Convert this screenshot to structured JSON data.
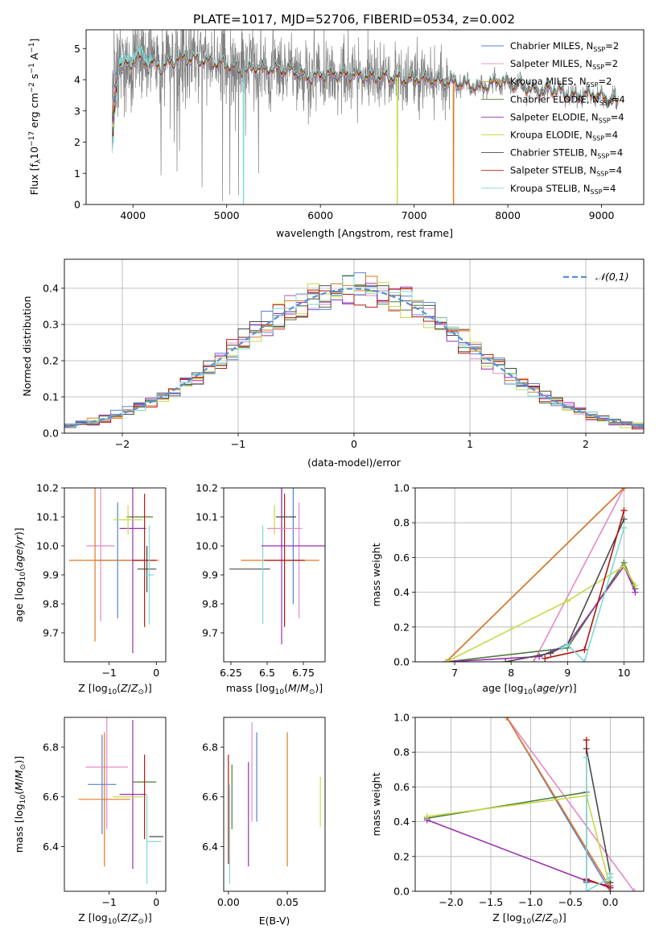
{
  "figure": {
    "title": "PLATE=1017, MJD=52706, FIBERID=0534, z=0.002"
  },
  "models": [
    {
      "name": "Chabrier MILES",
      "nssp": "2",
      "color": "#5a7fd6"
    },
    {
      "name": "Salpeter MILES",
      "nssp": "2",
      "color": "#e58ac6"
    },
    {
      "name": "Kroupa MILES",
      "nssp": "2",
      "color": "#e07a1f"
    },
    {
      "name": "Chabrier ELODIE",
      "nssp": "4",
      "color": "#4e7d3a"
    },
    {
      "name": "Salpeter ELODIE",
      "nssp": "4",
      "color": "#9b2fb0"
    },
    {
      "name": "Kroupa ELODIE",
      "nssp": "4",
      "color": "#c8d94a"
    },
    {
      "name": "Chabrier STELIB",
      "nssp": "4",
      "color": "#4a4a4a"
    },
    {
      "name": "Salpeter STELIB",
      "nssp": "4",
      "color": "#b01a12"
    },
    {
      "name": "Kroupa STELIB",
      "nssp": "4",
      "color": "#7fd8d8"
    }
  ],
  "chart_data": [
    {
      "id": "spectrum",
      "type": "line",
      "xlabel": "wavelength [Angstrom, rest frame]",
      "ylabel": "Flux [f_λ 10^-17 erg cm^-2 s^-1 A^-1]",
      "xlim": [
        3500,
        9450
      ],
      "ylim": [
        0,
        5.6
      ],
      "xticks": [
        4000,
        5000,
        6000,
        7000,
        8000,
        9000
      ],
      "yticks": [
        0,
        1,
        2,
        3,
        4,
        5
      ],
      "data_color": "#808080",
      "spectrum_anchors": {
        "x": [
          3780,
          3850,
          3950,
          4050,
          4150,
          4300,
          4500,
          4700,
          4861,
          5000,
          5175,
          5300,
          5500,
          5700,
          5890,
          6100,
          6300,
          6563,
          6700,
          6900,
          7100,
          7300,
          7500,
          7700,
          7900,
          8100,
          8300,
          8500,
          8700,
          8900,
          9100,
          9180
        ],
        "y": [
          3.8,
          4.6,
          4.5,
          4.85,
          4.6,
          4.4,
          4.7,
          4.65,
          4.55,
          4.5,
          4.25,
          4.4,
          4.35,
          4.3,
          4.05,
          4.2,
          4.15,
          4.1,
          4.1,
          4.0,
          4.05,
          3.95,
          3.9,
          3.75,
          3.95,
          3.85,
          3.65,
          3.7,
          3.45,
          3.55,
          3.35,
          3.3
        ]
      },
      "model_dropouts": [
        {
          "model": "Kroupa MILES",
          "x": 7420
        },
        {
          "model": "Kroupa ELODIE",
          "x": 6820
        },
        {
          "model": "Kroupa STELIB",
          "x": 5180
        }
      ],
      "legend_location": "upper right"
    },
    {
      "id": "residuals",
      "type": "line",
      "xlabel": "(data-model)/error",
      "ylabel": "Normed distribution",
      "xlim": [
        -2.5,
        2.5
      ],
      "ylim": [
        0,
        0.48
      ],
      "xticks": [
        -2,
        -1,
        0,
        1,
        2
      ],
      "yticks": [
        0.0,
        0.1,
        0.2,
        0.3,
        0.4
      ],
      "grid": true,
      "reference_curve": {
        "label": "𝒩(0,1)",
        "color": "#5a8fd6",
        "mean": 0,
        "sigma": 1
      },
      "histogram_bin_width": 0.1
    },
    {
      "id": "age-vs-Z",
      "type": "scatter",
      "xlabel": "Z [log10(Z/Z⊙)]",
      "ylabel": "age [log10(age/yr)]",
      "xlim": [
        -1.95,
        0.2
      ],
      "ylim": [
        9.6,
        10.2
      ],
      "xticks": [
        -1,
        0
      ],
      "yticks": [
        9.7,
        9.8,
        9.9,
        10.0,
        10.1,
        10.2
      ],
      "errorbars": [
        {
          "model": "Chabrier MILES",
          "x": -0.82,
          "xerr": 0.45,
          "y": 9.95,
          "yerr": 0.2
        },
        {
          "model": "Salpeter MILES",
          "x": -1.18,
          "xerr": 0.3,
          "y": 10.0,
          "yerr": 0.26
        },
        {
          "model": "Kroupa MILES",
          "x": -1.3,
          "xerr": 0.0,
          "y": 9.95,
          "yerr": 0.28
        },
        {
          "model": "Kroupa MILES",
          "x": -0.9,
          "xerr": 0.95,
          "y": 9.95,
          "yerr": 0.0
        },
        {
          "model": "Chabrier ELODIE",
          "x": -0.35,
          "xerr": 0.28,
          "y": 10.1,
          "yerr": 0.0
        },
        {
          "model": "Salpeter ELODIE",
          "x": -0.5,
          "xerr": 0.28,
          "y": 10.06,
          "yerr": 0.43
        },
        {
          "model": "Kroupa ELODIE",
          "x": -0.6,
          "xerr": 0.3,
          "y": 10.09,
          "yerr": 0.05
        },
        {
          "model": "Chabrier STELIB",
          "x": -0.2,
          "xerr": 0.2,
          "y": 9.92,
          "yerr": 0.08
        },
        {
          "model": "Salpeter STELIB",
          "x": -0.25,
          "xerr": 0.25,
          "y": 9.95,
          "yerr": 0.23
        },
        {
          "model": "Kroupa STELIB",
          "x": -0.15,
          "xerr": 0.1,
          "y": 9.9,
          "yerr": 0.17
        }
      ]
    },
    {
      "id": "age-vs-mass",
      "type": "scatter",
      "xlabel": "mass [log10(M/M⊙)]",
      "ylabel": "",
      "xlim": [
        6.2,
        6.9
      ],
      "ylim": [
        9.6,
        10.2
      ],
      "xticks": [
        6.25,
        6.5,
        6.75
      ],
      "yticks": [
        9.7,
        9.8,
        9.9,
        10.0,
        10.1,
        10.2
      ],
      "errorbars": [
        {
          "model": "Chabrier MILES",
          "x": 6.68,
          "xerr": 0.0,
          "y": 10.0,
          "yerr": 0.2
        },
        {
          "model": "Salpeter MILES",
          "x": 6.72,
          "xerr": 0.0,
          "y": 9.95,
          "yerr": 0.2
        },
        {
          "model": "Kroupa MILES",
          "x": 6.59,
          "xerr": 0.27,
          "y": 9.95,
          "yerr": 0.0
        },
        {
          "model": "Chabrier ELODIE",
          "x": 6.6,
          "xerr": 0.0,
          "y": 10.1,
          "yerr": 0.1
        },
        {
          "model": "Salpeter ELODIE",
          "x": 6.6,
          "xerr": 0.0,
          "y": 10.06,
          "yerr": 0.4
        },
        {
          "model": "Kroupa ELODIE",
          "x": 6.55,
          "xerr": 0.0,
          "y": 10.09,
          "yerr": 0.05
        },
        {
          "model": "Chabrier STELIB",
          "x": 6.38,
          "xerr": 0.14,
          "y": 9.92,
          "yerr": 0.0
        },
        {
          "model": "Salpeter STELIB",
          "x": 6.62,
          "xerr": 0.14,
          "y": 9.95,
          "yerr": 0.23
        },
        {
          "model": "Kroupa STELIB",
          "x": 6.47,
          "xerr": 0.0,
          "y": 9.9,
          "yerr": 0.17
        },
        {
          "model": "Salpeter ELODIE",
          "x": 6.68,
          "xerr": 0.22,
          "y": 10.0,
          "yerr": 0.0
        },
        {
          "model": "Chabrier STELIB",
          "x": 6.63,
          "xerr": 0.07,
          "y": 10.1,
          "yerr": 0.0
        },
        {
          "model": "Salpeter MILES",
          "x": 6.62,
          "xerr": 0.12,
          "y": 10.06,
          "yerr": 0.0
        }
      ]
    },
    {
      "id": "weight-vs-age",
      "type": "line",
      "xlabel": "age [log10(age/yr)]",
      "ylabel": "mass weight",
      "xlim": [
        6.3,
        10.35
      ],
      "ylim": [
        0,
        1.0
      ],
      "xticks": [
        7,
        8,
        9,
        10
      ],
      "yticks": [
        0.0,
        0.2,
        0.4,
        0.6,
        0.8,
        1.0
      ],
      "grid": true,
      "series": [
        {
          "model": "Chabrier MILES",
          "x": [
            6.85,
            10.0
          ],
          "y": [
            0.0,
            1.0
          ]
        },
        {
          "model": "Salpeter MILES",
          "x": [
            8.4,
            10.0
          ],
          "y": [
            0.0,
            1.0
          ]
        },
        {
          "model": "Kroupa MILES",
          "x": [
            6.85,
            10.0
          ],
          "y": [
            0.0,
            1.0
          ]
        },
        {
          "model": "Chabrier ELODIE",
          "x": [
            6.85,
            9.0,
            10.0,
            10.2
          ],
          "y": [
            0.0,
            0.08,
            0.57,
            0.42
          ]
        },
        {
          "model": "Salpeter ELODIE",
          "x": [
            6.85,
            8.5,
            9.0,
            10.0,
            10.2
          ],
          "y": [
            0.0,
            0.03,
            0.1,
            0.55,
            0.4
          ]
        },
        {
          "model": "Kroupa ELODIE",
          "x": [
            6.85,
            9.0,
            10.0,
            10.2
          ],
          "y": [
            0.0,
            0.35,
            0.55,
            0.44
          ]
        },
        {
          "model": "Chabrier STELIB",
          "x": [
            7.9,
            8.7,
            9.0,
            10.0
          ],
          "y": [
            0.0,
            0.05,
            0.1,
            0.82
          ]
        },
        {
          "model": "Salpeter STELIB",
          "x": [
            8.6,
            9.3,
            10.0
          ],
          "y": [
            0.02,
            0.07,
            0.87
          ]
        },
        {
          "model": "Kroupa STELIB",
          "x": [
            8.9,
            9.0,
            9.3,
            10.0
          ],
          "y": [
            0.08,
            0.1,
            0.0,
            0.77
          ]
        }
      ]
    },
    {
      "id": "mass-vs-Z",
      "type": "scatter",
      "xlabel": "Z [log10(Z/Z⊙)]",
      "ylabel": "mass [log10(M/M⊙)]",
      "xlim": [
        -1.95,
        0.2
      ],
      "ylim": [
        6.22,
        6.92
      ],
      "xticks": [
        -1,
        0
      ],
      "yticks": [
        6.4,
        6.6,
        6.8
      ],
      "errorbars": [
        {
          "model": "Chabrier MILES",
          "x": -1.15,
          "xerr": 0.3,
          "y": 6.65,
          "yerr": 0.2
        },
        {
          "model": "Salpeter MILES",
          "x": -1.05,
          "xerr": 0.45,
          "y": 6.72,
          "yerr": 0.25
        },
        {
          "model": "Kroupa MILES",
          "x": -1.1,
          "xerr": 0.55,
          "y": 6.59,
          "yerr": 0.27
        },
        {
          "model": "Chabrier ELODIE",
          "x": -0.25,
          "xerr": 0.25,
          "y": 6.66,
          "yerr": 0.0
        },
        {
          "model": "Salpeter ELODIE",
          "x": -0.5,
          "xerr": 0.28,
          "y": 6.61,
          "yerr": 0.3
        },
        {
          "model": "Kroupa ELODIE",
          "x": -0.6,
          "xerr": 0.32,
          "y": 6.6,
          "yerr": 0.0
        },
        {
          "model": "Chabrier STELIB",
          "x": 0.0,
          "xerr": 0.15,
          "y": 6.44,
          "yerr": 0.0
        },
        {
          "model": "Salpeter STELIB",
          "x": -0.25,
          "xerr": 0.0,
          "y": 6.6,
          "yerr": 0.17
        },
        {
          "model": "Kroupa STELIB",
          "x": -0.05,
          "xerr": 0.15,
          "y": 6.42,
          "yerr": 0.0
        },
        {
          "model": "Kroupa STELIB",
          "x": -0.2,
          "xerr": 0.0,
          "y": 6.43,
          "yerr": 0.18
        }
      ]
    },
    {
      "id": "mass-vs-EBV",
      "type": "scatter",
      "xlabel": "E(B-V)",
      "ylabel": "",
      "xlim": [
        -0.004,
        0.082
      ],
      "ylim": [
        6.22,
        6.92
      ],
      "xticks": [
        0.0,
        0.05
      ],
      "xticklabels": [
        "0.00",
        "0.05"
      ],
      "yticks": [
        6.4,
        6.6,
        6.8
      ],
      "errorbars": [
        {
          "model": "Salpeter STELIB",
          "x": 0.0,
          "xerr": 0.0,
          "y": 6.55,
          "yerr": 0.22
        },
        {
          "model": "Kroupa STELIB",
          "x": 0.001,
          "xerr": 0.0,
          "y": 6.45,
          "yerr": 0.2
        },
        {
          "model": "Chabrier ELODIE",
          "x": 0.003,
          "xerr": 0.0,
          "y": 6.6,
          "yerr": 0.13
        },
        {
          "model": "Salpeter ELODIE",
          "x": 0.017,
          "xerr": 0.0,
          "y": 6.53,
          "yerr": 0.21
        },
        {
          "model": "Salpeter MILES",
          "x": 0.02,
          "xerr": 0.0,
          "y": 6.7,
          "yerr": 0.2
        },
        {
          "model": "Chabrier MILES",
          "x": 0.024,
          "xerr": 0.0,
          "y": 6.68,
          "yerr": 0.18
        },
        {
          "model": "Kroupa MILES",
          "x": 0.05,
          "xerr": 0.0,
          "y": 6.59,
          "yerr": 0.27
        },
        {
          "model": "Kroupa ELODIE",
          "x": 0.078,
          "xerr": 0.0,
          "y": 6.58,
          "yerr": 0.1
        }
      ]
    },
    {
      "id": "weight-vs-Z",
      "type": "line",
      "xlabel": "Z [log10(Z/Z⊙)]",
      "ylabel": "mass weight",
      "xlim": [
        -2.45,
        0.42
      ],
      "ylim": [
        0,
        1.0
      ],
      "xticks": [
        -2.0,
        -1.5,
        -1.0,
        -0.5,
        0.0
      ],
      "xticklabels": [
        "−2.0",
        "−1.5",
        "−1.0",
        "−0.5",
        "0.0"
      ],
      "yticks": [
        0.0,
        0.2,
        0.4,
        0.6,
        0.8,
        1.0
      ],
      "grid": true,
      "series": [
        {
          "model": "Chabrier MILES",
          "x": [
            -1.3,
            0.0
          ],
          "y": [
            1.0,
            0.0
          ]
        },
        {
          "model": "Salpeter MILES",
          "x": [
            -1.3,
            0.3
          ],
          "y": [
            1.0,
            0.0
          ]
        },
        {
          "model": "Kroupa MILES",
          "x": [
            -1.3,
            0.0
          ],
          "y": [
            1.0,
            0.02
          ]
        },
        {
          "model": "Chabrier ELODIE",
          "x": [
            -2.3,
            -0.3,
            -0.3
          ],
          "y": [
            0.42,
            0.57,
            0.05
          ]
        },
        {
          "model": "Salpeter ELODIE",
          "x": [
            -2.3,
            -0.3,
            0.0
          ],
          "y": [
            0.41,
            0.06,
            0.03
          ]
        },
        {
          "model": "Kroupa ELODIE",
          "x": [
            -2.3,
            -0.3,
            0.0
          ],
          "y": [
            0.43,
            0.55,
            0.02
          ]
        },
        {
          "model": "Chabrier STELIB",
          "x": [
            -0.3,
            0.0,
            0.0
          ],
          "y": [
            0.82,
            0.1,
            0.05
          ]
        },
        {
          "model": "Salpeter STELIB",
          "x": [
            -0.3,
            -0.3,
            0.0
          ],
          "y": [
            0.87,
            0.07,
            0.02
          ]
        },
        {
          "model": "Kroupa STELIB",
          "x": [
            -0.3,
            -0.3,
            0.0,
            0.0
          ],
          "y": [
            0.77,
            0.0,
            0.08,
            0.1
          ]
        }
      ]
    }
  ]
}
